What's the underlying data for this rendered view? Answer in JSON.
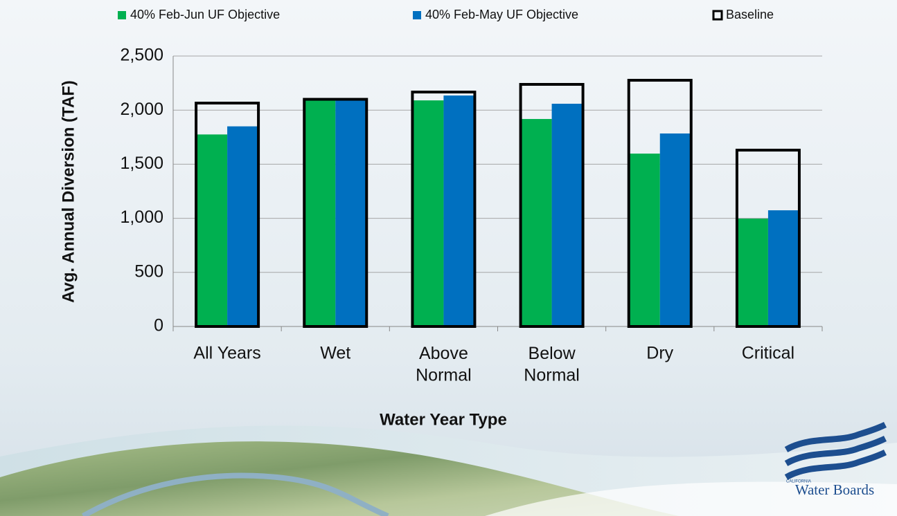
{
  "chart_data": {
    "type": "bar",
    "categories": [
      "All Years",
      "Wet",
      "Above\nNormal",
      "Below\nNormal",
      "Dry",
      "Critical"
    ],
    "series": [
      {
        "name": "40% Feb-Jun UF Objective",
        "color": "#00b050",
        "values": [
          1775,
          2090,
          2090,
          1918,
          1598,
          997
        ]
      },
      {
        "name": "40% Feb-May UF Objective",
        "color": "#0070c0",
        "values": [
          1850,
          2090,
          2135,
          2059,
          1784,
          1074
        ]
      },
      {
        "name": "Baseline",
        "color": "#000000",
        "outline": true,
        "values": [
          2065,
          2100,
          2167,
          2238,
          2276,
          1630
        ]
      }
    ],
    "x_label": "Water Year Type",
    "y_label": "Avg. Annual Diversion (TAF)",
    "ylim": [
      0,
      2500
    ],
    "yticks": [
      0,
      500,
      {
        "value": 1000,
        "label": "1,000"
      },
      {
        "value": 1500,
        "label": "1,500"
      },
      {
        "value": 2000,
        "label": "2,000"
      },
      {
        "value": 2500,
        "label": "2,500"
      }
    ],
    "grid": true,
    "legend": "top"
  },
  "logo": {
    "state": "CALIFORNIA",
    "name": "Water Boards"
  }
}
